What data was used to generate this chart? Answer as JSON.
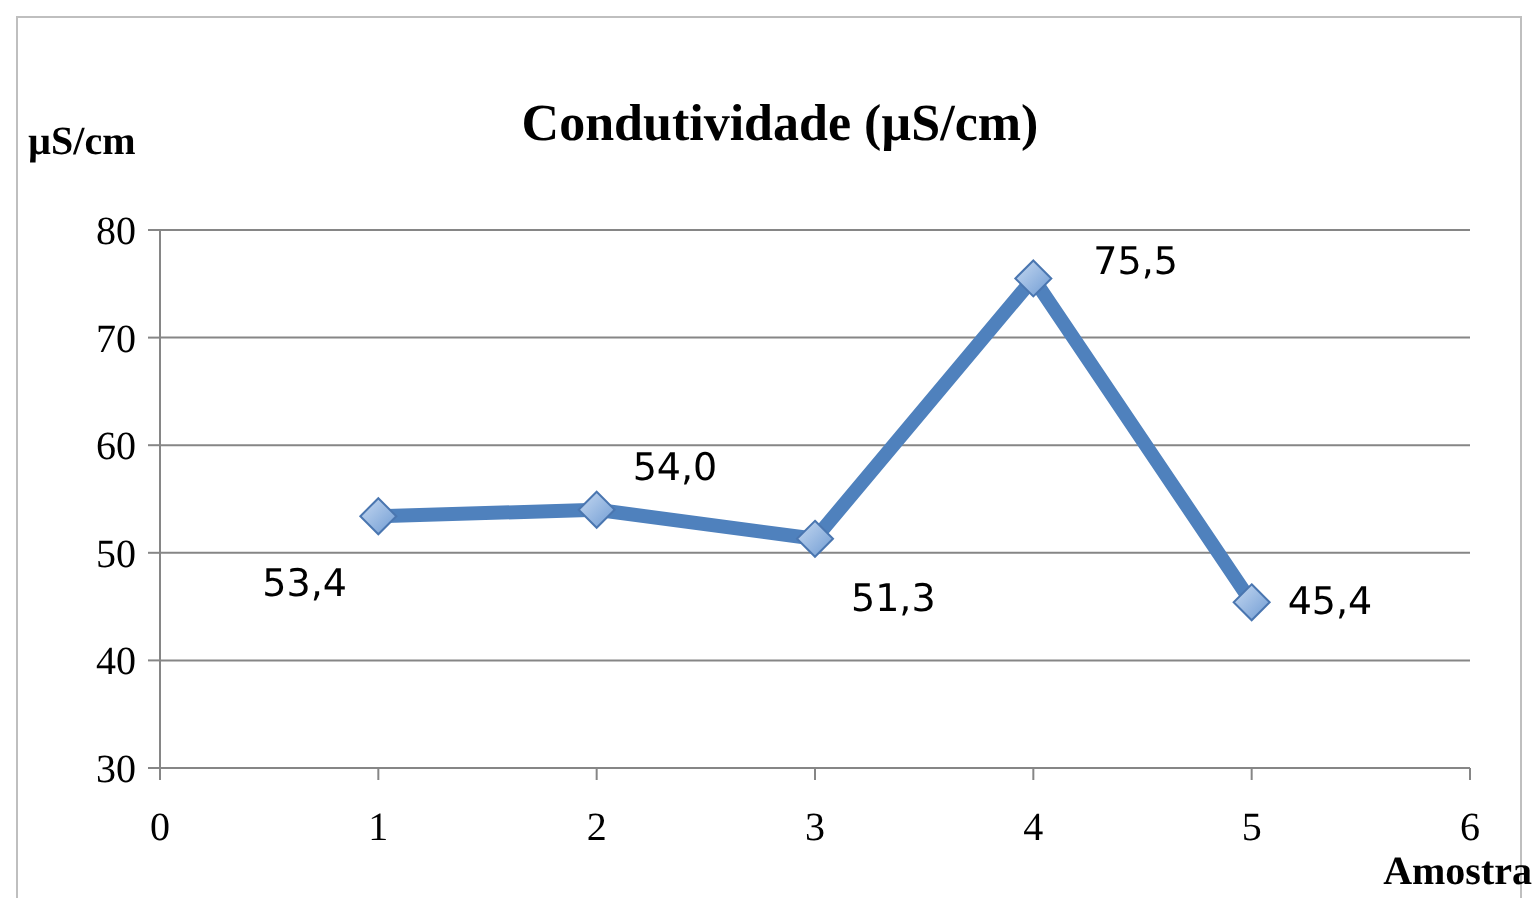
{
  "chart_data": {
    "type": "line",
    "title": "Condutividade (µS/cm)",
    "xlabel": "Amostra",
    "ylabel": "µS/cm",
    "x": [
      1,
      2,
      3,
      4,
      5
    ],
    "series": [
      {
        "color": "#4f81bd",
        "values": [
          53.4,
          54.0,
          51.3,
          75.5,
          45.4
        ],
        "value_labels": [
          "53,4",
          "54,0",
          "51,3",
          "75,5",
          "45,4"
        ]
      }
    ],
    "xlim": [
      0,
      6
    ],
    "xticks": [
      0,
      1,
      2,
      3,
      4,
      5,
      6
    ],
    "ylim": [
      30,
      80
    ],
    "yticks": [
      30,
      40,
      50,
      60,
      70,
      80
    ],
    "grid": "y",
    "marker": "diamond",
    "line_style": "solid"
  }
}
